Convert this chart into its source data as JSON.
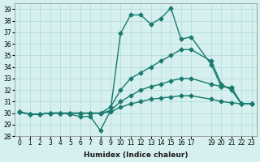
{
  "xlabel": "Humidex (Indice chaleur)",
  "bg_color": "#d6f0f0",
  "line_color": "#1a7a6e",
  "grid_color": "#b0d8d8",
  "ylim": [
    28,
    39.5
  ],
  "xlim": [
    -0.5,
    23.5
  ],
  "yticks": [
    28,
    29,
    30,
    31,
    32,
    33,
    34,
    35,
    36,
    37,
    38,
    39
  ],
  "xticks": [
    0,
    1,
    2,
    3,
    4,
    5,
    6,
    7,
    8,
    9,
    10,
    11,
    12,
    13,
    14,
    15,
    16,
    17,
    19,
    20,
    21,
    22,
    23
  ],
  "xtick_labels": [
    "0",
    "1",
    "2",
    "3",
    "4",
    "5",
    "6",
    "7",
    "8",
    "9",
    "10",
    "11",
    "12",
    "13",
    "14",
    "15",
    "16",
    "17",
    "19",
    "20",
    "21",
    "22",
    "23"
  ],
  "lines": [
    {
      "x": [
        0,
        1,
        2,
        3,
        4,
        5,
        6,
        7,
        8,
        9,
        10,
        11,
        12,
        13,
        14,
        15,
        16,
        17,
        19,
        20,
        21,
        22,
        23
      ],
      "y": [
        30.1,
        29.9,
        29.9,
        30.0,
        30.0,
        29.9,
        29.7,
        29.7,
        28.5,
        30.2,
        36.9,
        38.5,
        38.5,
        37.7,
        38.2,
        39.1,
        36.4,
        36.6,
        34.2,
        32.3,
        32.2,
        30.8,
        30.8
      ]
    },
    {
      "x": [
        0,
        1,
        2,
        3,
        4,
        5,
        6,
        7,
        8,
        9,
        10,
        11,
        12,
        13,
        14,
        15,
        16,
        17,
        19,
        20,
        21,
        22,
        23
      ],
      "y": [
        30.1,
        29.9,
        29.9,
        30.0,
        30.0,
        30.0,
        30.0,
        30.0,
        30.0,
        30.5,
        32.0,
        33.0,
        33.5,
        34.0,
        34.5,
        35.0,
        35.5,
        35.5,
        34.5,
        32.5,
        32.0,
        30.8,
        30.8
      ]
    },
    {
      "x": [
        0,
        1,
        2,
        3,
        4,
        5,
        6,
        7,
        8,
        9,
        10,
        11,
        12,
        13,
        14,
        15,
        16,
        17,
        19,
        20,
        21,
        22,
        23
      ],
      "y": [
        30.1,
        29.9,
        29.9,
        30.0,
        30.0,
        30.0,
        30.0,
        30.0,
        30.0,
        30.2,
        31.0,
        31.5,
        32.0,
        32.3,
        32.5,
        32.8,
        33.0,
        33.0,
        32.5,
        32.3,
        32.2,
        30.8,
        30.8
      ]
    },
    {
      "x": [
        0,
        1,
        2,
        3,
        4,
        5,
        6,
        7,
        8,
        9,
        10,
        11,
        12,
        13,
        14,
        15,
        16,
        17,
        19,
        20,
        21,
        22,
        23
      ],
      "y": [
        30.1,
        29.9,
        29.9,
        30.0,
        30.0,
        30.0,
        30.0,
        30.0,
        30.0,
        30.1,
        30.5,
        30.8,
        31.0,
        31.2,
        31.3,
        31.4,
        31.5,
        31.5,
        31.2,
        31.0,
        30.9,
        30.8,
        30.8
      ]
    }
  ],
  "marker": "D",
  "markersize": 2.5,
  "linewidth": 1.0
}
